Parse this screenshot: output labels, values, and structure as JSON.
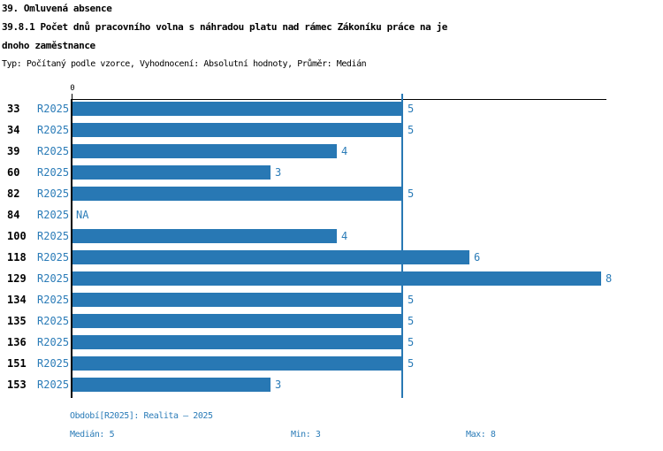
{
  "header": {
    "line1": "39. Omluvená absence",
    "line2": "39.8.1 Počet dnů pracovního volna s náhradou platu nad rámec Zákoníku práce na je",
    "line3": "dnoho zaměstnance",
    "meta": "Typ: Počítaný podle vzorce, Vyhodnocení: Absolutní hodnoty, Průměr: Medián"
  },
  "chart_data": {
    "type": "bar",
    "orientation": "horizontal",
    "title": "39. Omluvená absence",
    "subtitle": "39.8.1 Počet dnů pracovního volna s náhradou platu nad rámec Zákoníku práce na jednoho zaměstnance",
    "type_note": "Typ: Počítaný podle vzorce, Vyhodnocení: Absolutní hodnoty, Průměr: Medián",
    "categories": [
      "33",
      "34",
      "39",
      "60",
      "82",
      "84",
      "100",
      "118",
      "129",
      "134",
      "135",
      "136",
      "151",
      "153"
    ],
    "period_label": "R2025",
    "series": [
      {
        "name": "R2025",
        "values": [
          5,
          5,
          4,
          3,
          5,
          null,
          4,
          6,
          8,
          5,
          5,
          5,
          5,
          3
        ]
      }
    ],
    "value_labels": [
      "5",
      "5",
      "4",
      "3",
      "5",
      "NA",
      "4",
      "6",
      "8",
      "5",
      "5",
      "5",
      "5",
      "3"
    ],
    "x_axis_zero_label": "0",
    "xlim": [
      0,
      8
    ],
    "reference_line_value": 5,
    "grid": "off",
    "bar_color": "#2878b4",
    "accent_text_color": "#2b7cb8",
    "axis_color": "#000000",
    "median": 5,
    "min": 3,
    "max": 8
  },
  "footer": {
    "period": "Období[R2025]: Realita – 2025",
    "median": "Medián: 5",
    "min": "Min: 3",
    "max": "Max: 8"
  }
}
